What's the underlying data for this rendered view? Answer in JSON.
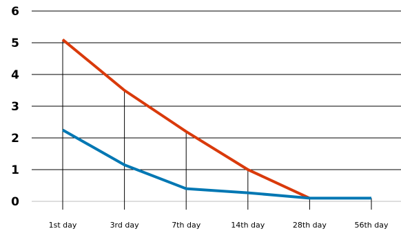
{
  "chart_data": {
    "type": "line",
    "title": "",
    "xlabel": "",
    "ylabel": "",
    "categories": [
      "1st day",
      "3rd day",
      "7th day",
      "14th day",
      "28th day",
      "56th day"
    ],
    "ylim": [
      0,
      6
    ],
    "yticks": [
      0,
      1,
      2,
      3,
      4,
      5,
      6
    ],
    "grid": true,
    "legend": "none",
    "series": [
      {
        "color": "#d93a0b",
        "values": [
          5.1,
          3.5,
          2.2,
          1.0,
          0.1,
          null
        ]
      },
      {
        "color": "#0077b3",
        "values": [
          2.25,
          1.15,
          0.4,
          0.27,
          0.1,
          0.1
        ]
      }
    ]
  }
}
